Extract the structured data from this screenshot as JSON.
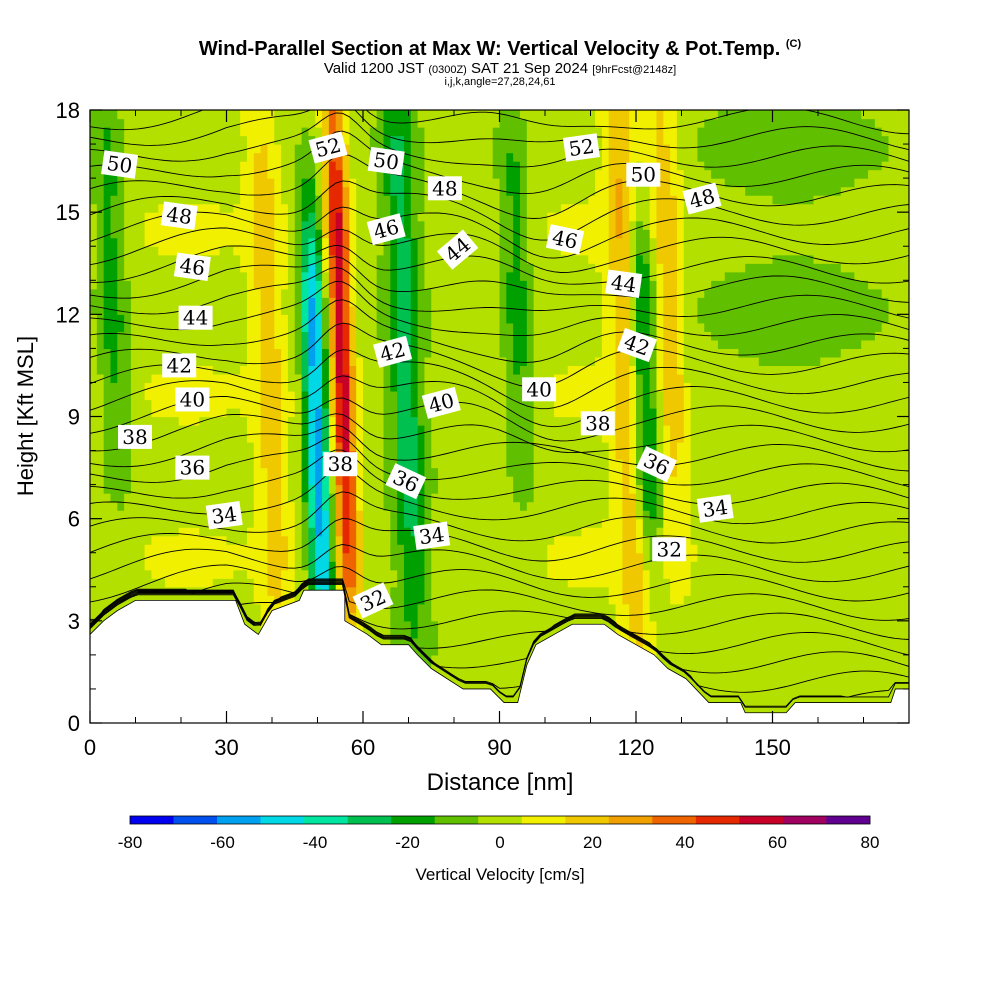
{
  "header": {
    "title": "Wind-Parallel Section at Max W: Vertical Velocity & Pot.Temp.",
    "title_mark": "(C)",
    "valid_pre": "Valid 1200 JST",
    "valid_utc": "(0300Z)",
    "valid_date": "SAT 21 Sep 2024",
    "forecast": "[9hrFcst@2148z]",
    "indices": "i,j,k,angle=27,28,24,61"
  },
  "chart_data": {
    "type": "heatmap",
    "xlabel": "Distance [nm]",
    "ylabel": "Height [Kft MSL]",
    "xlim": [
      0,
      180
    ],
    "ylim": [
      0,
      18
    ],
    "x_ticks": [
      "0",
      "30",
      "60",
      "90",
      "120",
      "150"
    ],
    "y_ticks": [
      "0",
      "3",
      "6",
      "9",
      "12",
      "15",
      "18"
    ],
    "colorbar": {
      "label": "Vertical Velocity [cm/s]",
      "tick_labels": [
        "-80",
        "-60",
        "-40",
        "-20",
        "0",
        "20",
        "40",
        "60",
        "80"
      ],
      "levels": [
        -80,
        -70,
        -60,
        -50,
        -40,
        -30,
        -20,
        -10,
        0,
        10,
        20,
        30,
        40,
        50,
        60,
        70,
        80
      ],
      "colors": [
        "#0000f0",
        "#0050f0",
        "#00a0f0",
        "#00d8e6",
        "#00e6a0",
        "#00c050",
        "#00a000",
        "#60c000",
        "#b4e000",
        "#f0f000",
        "#f0c800",
        "#f0a000",
        "#f06400",
        "#e62800",
        "#c80028",
        "#a00060",
        "#600090"
      ]
    },
    "updrafts": [
      {
        "name": "band-52",
        "x": 56,
        "zmin": 4,
        "zmax": 18,
        "peak": 60
      },
      {
        "name": "band-119",
        "x": 119,
        "zmin": 3,
        "zmax": 18,
        "peak": 30
      },
      {
        "name": "band-40",
        "x": 40,
        "zmin": 3,
        "zmax": 18,
        "peak": 20
      },
      {
        "name": "band-128",
        "x": 128,
        "zmin": 6,
        "zmax": 18,
        "peak": 20
      }
    ],
    "downdrafts": [
      {
        "name": "band-50",
        "x": 50,
        "zmin": 3,
        "zmax": 14,
        "peak": -60
      },
      {
        "name": "band-122",
        "x": 122,
        "zmin": 6,
        "zmax": 14,
        "peak": -40
      },
      {
        "name": "band-6",
        "x": 6,
        "zmin": 8,
        "zmax": 18,
        "peak": -20
      },
      {
        "name": "band-70",
        "x": 70,
        "zmin": 4,
        "zmax": 18,
        "peak": -30
      },
      {
        "name": "band-95",
        "x": 95,
        "zmin": 8,
        "zmax": 17,
        "peak": -20
      }
    ],
    "terrain": [
      [
        0,
        2.6
      ],
      [
        3,
        3.0
      ],
      [
        6,
        3.3
      ],
      [
        10,
        3.6
      ],
      [
        32,
        3.6
      ],
      [
        34,
        2.9
      ],
      [
        37,
        2.6
      ],
      [
        40,
        3.3
      ],
      [
        46,
        3.6
      ],
      [
        47,
        3.9
      ],
      [
        56,
        3.9
      ],
      [
        56,
        3.0
      ],
      [
        61,
        2.6
      ],
      [
        64,
        2.3
      ],
      [
        70,
        2.3
      ],
      [
        72,
        2.0
      ],
      [
        75,
        1.6
      ],
      [
        82,
        1.0
      ],
      [
        88,
        1.0
      ],
      [
        91,
        0.6
      ],
      [
        94,
        0.6
      ],
      [
        96,
        1.7
      ],
      [
        98,
        2.3
      ],
      [
        102,
        2.6
      ],
      [
        106,
        2.9
      ],
      [
        113,
        2.9
      ],
      [
        116,
        2.6
      ],
      [
        120,
        2.3
      ],
      [
        124,
        2.0
      ],
      [
        127,
        1.6
      ],
      [
        131,
        1.3
      ],
      [
        136,
        0.6
      ],
      [
        143,
        0.6
      ],
      [
        144,
        0.3
      ],
      [
        153,
        0.3
      ],
      [
        155,
        0.6
      ],
      [
        176,
        0.6
      ],
      [
        177,
        1.0
      ],
      [
        180,
        1.0
      ]
    ],
    "isentropes": {
      "levels": [
        32,
        34,
        36,
        38,
        40,
        42,
        44,
        46,
        48,
        50,
        52
      ],
      "heights": [
        3.6,
        6.0,
        7.6,
        8.4,
        9.6,
        11.0,
        12.6,
        14.0,
        15.3,
        16.4,
        17.2
      ]
    },
    "contour_labels": [
      {
        "text": "50",
        "x": 6.5,
        "z": 16.4,
        "rot": 8
      },
      {
        "text": "48",
        "x": 19.6,
        "z": 14.9,
        "rot": 8
      },
      {
        "text": "46",
        "x": 22.5,
        "z": 13.4,
        "rot": 8
      },
      {
        "text": "44",
        "x": 23.2,
        "z": 11.9,
        "rot": 0
      },
      {
        "text": "42",
        "x": 19.6,
        "z": 10.5,
        "rot": 0
      },
      {
        "text": "40",
        "x": 22.5,
        "z": 9.5,
        "rot": 0
      },
      {
        "text": "38",
        "x": 9.9,
        "z": 8.4,
        "rot": 0
      },
      {
        "text": "36",
        "x": 22.5,
        "z": 7.5,
        "rot": 0
      },
      {
        "text": "34",
        "x": 29.5,
        "z": 6.1,
        "rot": -8
      },
      {
        "text": "52",
        "x": 52.3,
        "z": 16.9,
        "rot": -15
      },
      {
        "text": "50",
        "x": 65.1,
        "z": 16.5,
        "rot": 8
      },
      {
        "text": "48",
        "x": 78.0,
        "z": 15.7,
        "rot": 0
      },
      {
        "text": "46",
        "x": 65.1,
        "z": 14.5,
        "rot": -15
      },
      {
        "text": "44",
        "x": 80.8,
        "z": 13.9,
        "rot": -40
      },
      {
        "text": "42",
        "x": 66.5,
        "z": 10.9,
        "rot": -15
      },
      {
        "text": "40",
        "x": 77.2,
        "z": 9.4,
        "rot": -15
      },
      {
        "text": "38",
        "x": 55.0,
        "z": 7.6,
        "rot": 0
      },
      {
        "text": "36",
        "x": 69.4,
        "z": 7.1,
        "rot": 25
      },
      {
        "text": "34",
        "x": 75.1,
        "z": 5.5,
        "rot": -8
      },
      {
        "text": "32",
        "x": 62.2,
        "z": 3.6,
        "rot": -25
      },
      {
        "text": "52",
        "x": 108.0,
        "z": 16.9,
        "rot": -8
      },
      {
        "text": "50",
        "x": 121.6,
        "z": 16.1,
        "rot": 0
      },
      {
        "text": "48",
        "x": 134.5,
        "z": 15.4,
        "rot": -15
      },
      {
        "text": "46",
        "x": 104.4,
        "z": 14.2,
        "rot": 12
      },
      {
        "text": "44",
        "x": 117.3,
        "z": 12.9,
        "rot": 8
      },
      {
        "text": "42",
        "x": 120.2,
        "z": 11.1,
        "rot": 20
      },
      {
        "text": "40",
        "x": 98.7,
        "z": 9.8,
        "rot": 0
      },
      {
        "text": "38",
        "x": 111.6,
        "z": 8.8,
        "rot": 0
      },
      {
        "text": "36",
        "x": 124.5,
        "z": 7.6,
        "rot": 25
      },
      {
        "text": "34",
        "x": 137.4,
        "z": 6.3,
        "rot": -8
      },
      {
        "text": "32",
        "x": 127.3,
        "z": 5.1,
        "rot": 0
      }
    ]
  }
}
